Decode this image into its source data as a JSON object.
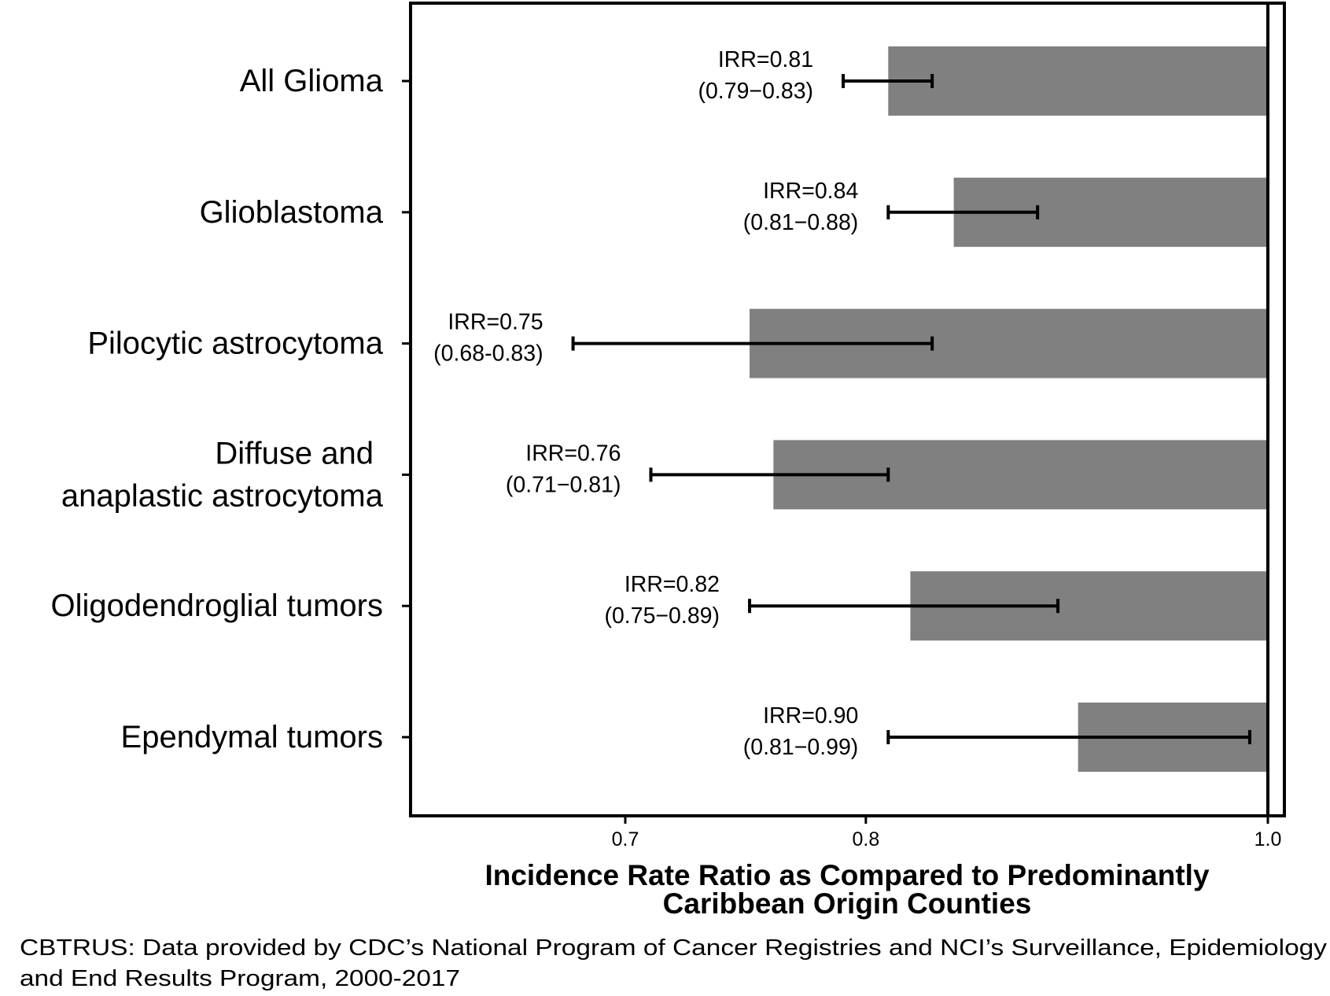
{
  "chart_data": {
    "type": "bar",
    "orientation": "horizontal",
    "scale": "log",
    "reference_value": 1.0,
    "xlim": [
      0.62,
      1.02
    ],
    "xticks": [
      {
        "value": 0.7,
        "label": "0.7"
      },
      {
        "value": 0.8,
        "label": "0.8"
      },
      {
        "value": 1.0,
        "label": "1.0"
      }
    ],
    "xlabel": [
      "Incidence Rate Ratio as Compared to Predominantly",
      "Caribbean Origin Counties"
    ],
    "ylabel": "",
    "grid": false,
    "legend": "none",
    "bar_color": "#808080",
    "categories": [
      {
        "label": [
          "All Glioma"
        ],
        "value": 0.81,
        "ci_low": 0.79,
        "ci_high": 0.83,
        "annotation": [
          "IRR=0.81",
          "(0.79−0.83)"
        ]
      },
      {
        "label": [
          "Glioblastoma"
        ],
        "value": 0.84,
        "ci_low": 0.81,
        "ci_high": 0.88,
        "annotation": [
          "IRR=0.84",
          "(0.81−0.88)"
        ]
      },
      {
        "label": [
          "Pilocytic astrocytoma"
        ],
        "value": 0.75,
        "ci_low": 0.68,
        "ci_high": 0.83,
        "annotation": [
          "IRR=0.75",
          "(0.68-0.83)"
        ]
      },
      {
        "label": [
          "Diffuse and",
          "anaplastic astrocytoma"
        ],
        "value": 0.76,
        "ci_low": 0.71,
        "ci_high": 0.81,
        "annotation": [
          "IRR=0.76",
          "(0.71−0.81)"
        ]
      },
      {
        "label": [
          "Oligodendroglial tumors"
        ],
        "value": 0.82,
        "ci_low": 0.75,
        "ci_high": 0.89,
        "annotation": [
          "IRR=0.82",
          "(0.75−0.89)"
        ]
      },
      {
        "label": [
          "Ependymal tumors"
        ],
        "value": 0.9,
        "ci_low": 0.81,
        "ci_high": 0.99,
        "annotation": [
          "IRR=0.90",
          "(0.81−0.99)"
        ]
      }
    ],
    "caption": [
      "CBTRUS: Data provided by CDC’s National Program of Cancer Registries and NCI’s Surveillance, Epidemiology",
      "and End Results Program, 2000-2017"
    ]
  }
}
